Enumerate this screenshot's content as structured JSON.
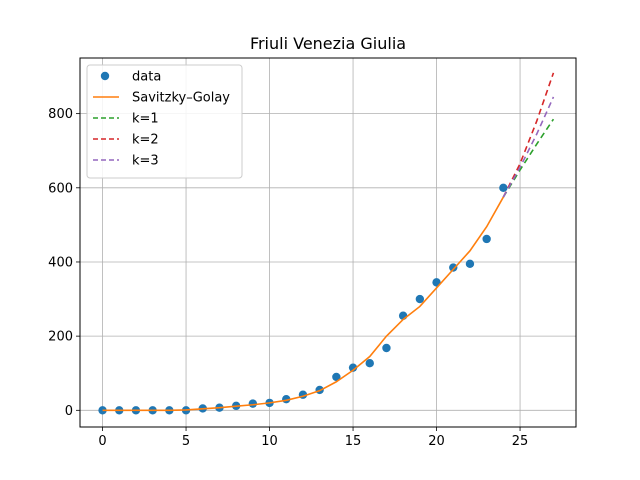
{
  "chart_data": {
    "type": "scatter",
    "title": "Friuli Venezia Giulia",
    "xlabel": "",
    "ylabel": "",
    "xlim": [
      -1.35,
      28.35
    ],
    "ylim": [
      -45,
      950
    ],
    "xticks": [
      0,
      5,
      10,
      15,
      20,
      25
    ],
    "yticks": [
      0,
      200,
      400,
      600,
      800
    ],
    "grid": true,
    "legend_position": "top-left",
    "series": [
      {
        "name": "data",
        "kind": "points",
        "color": "#1f77b4",
        "x": [
          0,
          1,
          2,
          3,
          4,
          5,
          6,
          7,
          8,
          9,
          10,
          11,
          12,
          13,
          14,
          15,
          16,
          17,
          18,
          19,
          20,
          21,
          22,
          23,
          24
        ],
        "y": [
          0,
          0,
          0,
          0,
          0,
          0,
          5,
          7,
          12,
          18,
          20,
          30,
          42,
          55,
          90,
          115,
          127,
          168,
          255,
          300,
          345,
          385,
          395,
          462,
          600
        ]
      },
      {
        "name": "Savitzky–Golay",
        "kind": "line",
        "color": "#ff7f0e",
        "dash": "",
        "x": [
          0,
          1,
          2,
          3,
          4,
          5,
          6,
          7,
          8,
          9,
          10,
          11,
          12,
          13,
          14,
          15,
          16,
          17,
          18,
          19,
          20,
          21,
          22,
          23,
          24
        ],
        "y": [
          0,
          0,
          0,
          0,
          0,
          1,
          4,
          7,
          11,
          15,
          20,
          27,
          38,
          53,
          77,
          108,
          145,
          200,
          245,
          280,
          330,
          380,
          430,
          495,
          575
        ]
      },
      {
        "name": "k=1",
        "kind": "line",
        "color": "#2ca02c",
        "dash": "6,4",
        "x": [
          24,
          25,
          26,
          27
        ],
        "y": [
          575,
          648,
          718,
          785
        ]
      },
      {
        "name": "k=2",
        "kind": "line",
        "color": "#d62728",
        "dash": "6,4",
        "x": [
          24,
          25,
          26,
          27
        ],
        "y": [
          575,
          665,
          780,
          910
        ]
      },
      {
        "name": "k=3",
        "kind": "line",
        "color": "#9467bd",
        "dash": "6,4",
        "x": [
          24,
          25,
          26,
          27
        ],
        "y": [
          575,
          655,
          745,
          845
        ]
      }
    ]
  }
}
